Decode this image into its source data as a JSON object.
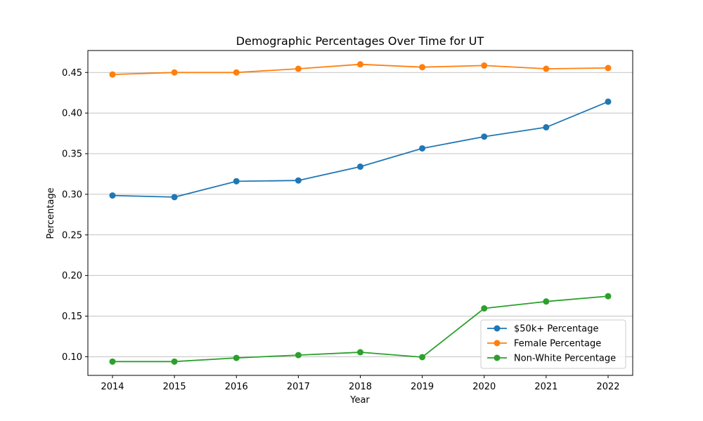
{
  "chart_data": {
    "type": "line",
    "title": "Demographic Percentages Over Time for UT",
    "xlabel": "Year",
    "ylabel": "Percentage",
    "x": [
      "2014",
      "2015",
      "2016",
      "2017",
      "2018",
      "2019",
      "2020",
      "2021",
      "2022"
    ],
    "ylim": [
      0.077,
      0.477
    ],
    "yticks": [
      "0.10",
      "0.15",
      "0.20",
      "0.25",
      "0.30",
      "0.35",
      "0.40",
      "0.45"
    ],
    "grid": "horizontal",
    "legend_position": "lower-right",
    "series": [
      {
        "name": "$50k+ Percentage",
        "color": "#1f77b4",
        "values": [
          0.2985,
          0.2965,
          0.316,
          0.317,
          0.334,
          0.3565,
          0.371,
          0.3825,
          0.414
        ]
      },
      {
        "name": "Female Percentage",
        "color": "#ff7f0e",
        "values": [
          0.4475,
          0.45,
          0.45,
          0.4545,
          0.46,
          0.4565,
          0.4585,
          0.4545,
          0.4555
        ]
      },
      {
        "name": "Non-White Percentage",
        "color": "#2ca02c",
        "values": [
          0.094,
          0.094,
          0.0985,
          0.102,
          0.1055,
          0.0995,
          0.1595,
          0.168,
          0.1745
        ]
      }
    ]
  }
}
